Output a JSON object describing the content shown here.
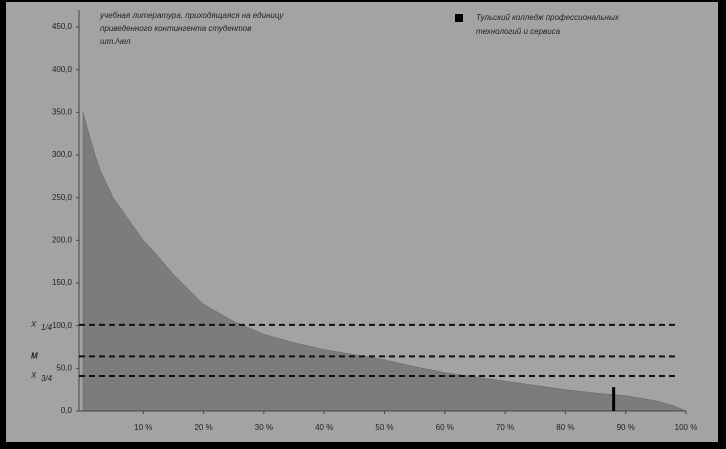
{
  "chart_data": {
    "type": "area",
    "annotation": [
      "учебная литература, приходящаяся на единицу",
      "приведенного контингента студентов",
      "шт./чел"
    ],
    "x": [
      0,
      1,
      2,
      3,
      5,
      8,
      10,
      12,
      15,
      20,
      25,
      30,
      35,
      40,
      45,
      50,
      55,
      60,
      65,
      70,
      75,
      80,
      85,
      90,
      95,
      98,
      100
    ],
    "values": [
      350,
      325,
      300,
      280,
      250,
      220,
      200,
      185,
      160,
      125,
      105,
      90,
      80,
      72,
      66,
      60,
      52,
      45,
      40,
      35,
      30,
      25,
      21,
      18,
      12,
      6,
      0
    ],
    "color": "#7c7c7c",
    "xlim": [
      0,
      100
    ],
    "xticks": [
      {
        "value": 10,
        "label": "10 %"
      },
      {
        "value": 20,
        "label": "20 %"
      },
      {
        "value": 30,
        "label": "30 %"
      },
      {
        "value": 40,
        "label": "40 %"
      },
      {
        "value": 50,
        "label": "50 %"
      },
      {
        "value": 60,
        "label": "60 %"
      },
      {
        "value": 70,
        "label": "70 %"
      },
      {
        "value": 80,
        "label": "80 %"
      },
      {
        "value": 90,
        "label": "90 %"
      },
      {
        "value": 100,
        "label": "100 %"
      }
    ],
    "ylim": [
      0,
      450
    ],
    "yticks": [
      {
        "value": 0,
        "label": "0,0"
      },
      {
        "value": 50,
        "label": "50,0"
      },
      {
        "value": 100,
        "label": "100,0"
      },
      {
        "value": 150,
        "label": "150,0"
      },
      {
        "value": 200,
        "label": "200,0"
      },
      {
        "value": 250,
        "label": "250,0"
      },
      {
        "value": 300,
        "label": "300,0"
      },
      {
        "value": 350,
        "label": "350,0"
      },
      {
        "value": 400,
        "label": "400,0"
      },
      {
        "value": 450,
        "label": "450,0"
      }
    ],
    "reference_lines": [
      {
        "label": "X",
        "sub": "1/4",
        "value": 101
      },
      {
        "label": "M",
        "value": 64
      },
      {
        "label": "X",
        "sub": "3/4",
        "value": 41
      }
    ],
    "highlight": {
      "name": "Тульский колледж профессиональных технологий и сервиса",
      "x": 88,
      "value": 28,
      "color": "#000000"
    }
  }
}
